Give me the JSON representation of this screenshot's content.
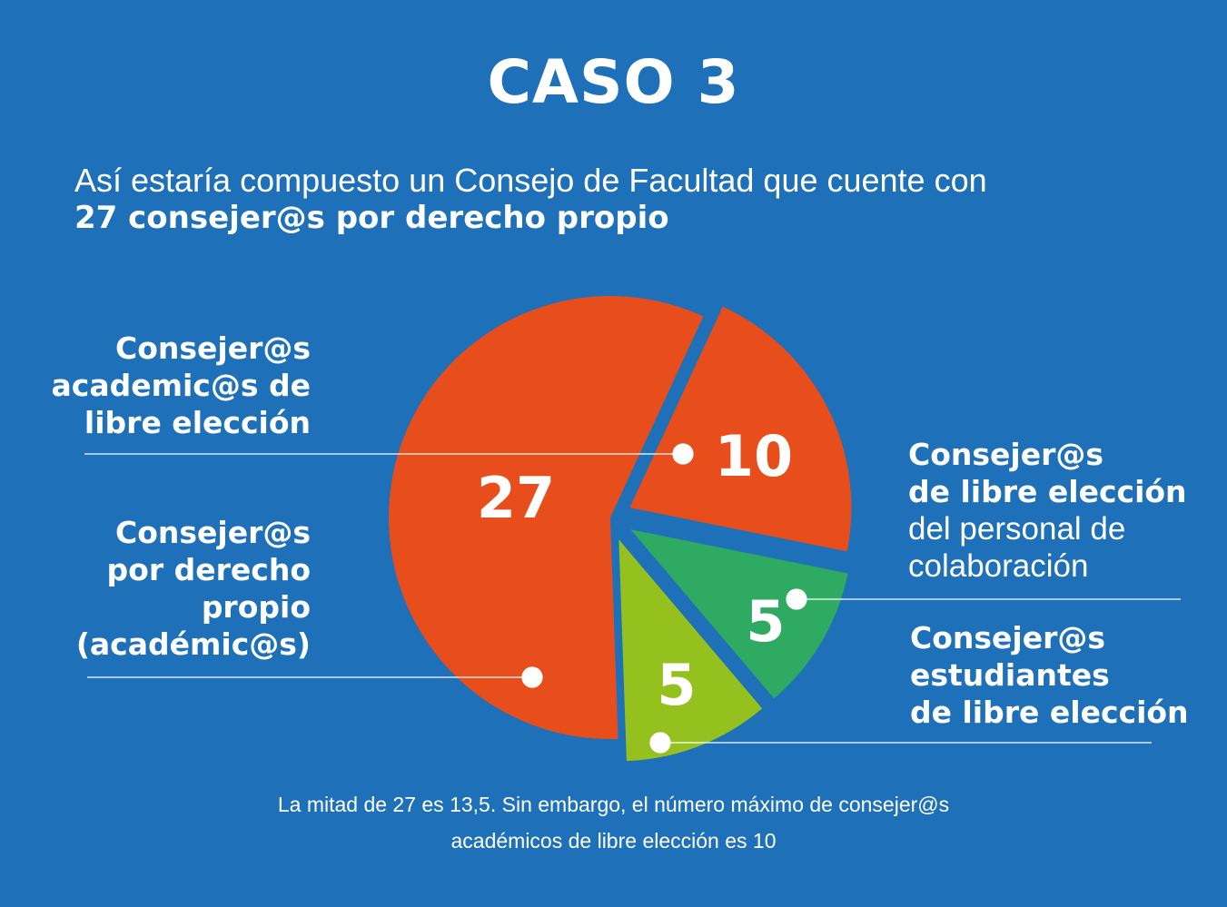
{
  "chart_data": {
    "type": "pie",
    "title": "CASO 3",
    "subtitle_line1": "Así estaría compuesto un Consejo de Facultad que cuente con",
    "subtitle_line2": "27 consejer@s por derecho propio",
    "slices": [
      {
        "name": "Consejer@s por derecho propio (académic@s)",
        "value": 27,
        "label": "27",
        "color": "#E84E1B"
      },
      {
        "name": "Consejer@s academic@s de libre elección",
        "value": 10,
        "label": "10",
        "color": "#E84E1B"
      },
      {
        "name": "Consejer@s de libre elección del personal de colaboración",
        "value": 5,
        "label": "5",
        "color": "#2EAA62"
      },
      {
        "name": "Consejer@s estudiantes de libre elección",
        "value": 5,
        "label": "5",
        "color": "#95C11F"
      }
    ],
    "annotation_line1": "La mitad de 27 es 13,5. Sin embargo, el número máximo de consejer@s",
    "annotation_line2": "académicos de libre elección es 10"
  },
  "labels": {
    "academicos": [
      "Consejer@s",
      "academic@s de",
      "libre elección"
    ],
    "derecho": [
      "Consejer@s",
      "por derecho",
      "propio",
      "(académic@s)"
    ],
    "colaboracion_bold": [
      "Consejer@s",
      "de libre elección"
    ],
    "colaboracion_normal": [
      "del personal de",
      "colaboración"
    ],
    "estudiantes": [
      "Consejer@s",
      "estudiantes",
      "de libre elección"
    ]
  },
  "colors": {
    "background": "#1E70B8"
  }
}
